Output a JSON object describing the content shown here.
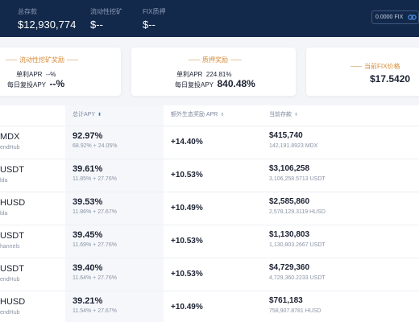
{
  "header": {
    "stats": [
      {
        "label": "总存款",
        "value": "$12,930,774"
      },
      {
        "label": "流动性挖矿",
        "value": "$--"
      },
      {
        "label": "FIX质押",
        "value": "$--"
      }
    ],
    "fix_balance": "0.0000 FIX",
    "colors": {
      "bg": "#13294b",
      "accent": "#3a78d8"
    }
  },
  "cards": [
    {
      "title": "流动性挖矿奖励",
      "line1_label": "单利APR",
      "line1_value": "--%",
      "line2_label": "每日复投APY",
      "line2_value": "--%"
    },
    {
      "title": "质押奖励",
      "line1_label": "单利APR",
      "line1_value": "224.81%",
      "line2_label": "每日复投APY",
      "line2_value": "840.48%"
    },
    {
      "title": "当前FIX价格",
      "value": "$17.5420"
    }
  ],
  "table": {
    "columns": [
      {
        "label": "总计APY",
        "sort": "sort-icon"
      },
      {
        "label": "额外生态奖励 APR",
        "sort": "sort-icon"
      },
      {
        "label": "当前存款",
        "sort": "sort-icon"
      }
    ],
    "rows": [
      {
        "token": "MDX",
        "platform": "endHub",
        "apy": "92.97%",
        "apy_detail": "68.92% + 24.05%",
        "bonus": "+14.40%",
        "deposit": "$415,740",
        "deposit_detail": "142,191.8923 MDX"
      },
      {
        "token": "USDT",
        "platform": "lda",
        "apy": "39.61%",
        "apy_detail": "11.85% + 27.76%",
        "bonus": "+10.53%",
        "deposit": "$3,106,258",
        "deposit_detail": "3,106,258.5713 USDT"
      },
      {
        "token": "HUSD",
        "platform": "lda",
        "apy": "39.53%",
        "apy_detail": "11.86% + 27.67%",
        "bonus": "+10.49%",
        "deposit": "$2,585,860",
        "deposit_detail": "2,578,129.3119 HUSD"
      },
      {
        "token": "USDT",
        "platform": "hannels",
        "apy": "39.45%",
        "apy_detail": "11.69% + 27.76%",
        "bonus": "+10.53%",
        "deposit": "$1,130,803",
        "deposit_detail": "1,130,803.2667 USDT"
      },
      {
        "token": "USDT",
        "platform": "endHub",
        "apy": "39.40%",
        "apy_detail": "11.64% + 27.76%",
        "bonus": "+10.53%",
        "deposit": "$4,729,360",
        "deposit_detail": "4,729,360.2233 USDT"
      },
      {
        "token": "HUSD",
        "platform": "endHub",
        "apy": "39.21%",
        "apy_detail": "11.54% + 27.67%",
        "bonus": "+10.49%",
        "deposit": "$761,183",
        "deposit_detail": "758,907.8781 HUSD"
      }
    ]
  }
}
